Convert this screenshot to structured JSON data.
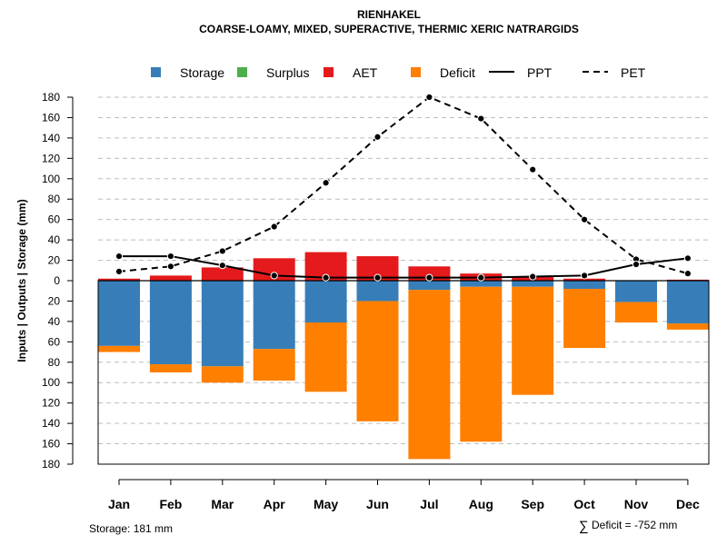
{
  "chart_data": {
    "type": "bar",
    "title": "RIENHAKEL",
    "subtitle": "COARSE-LOAMY, MIXED, SUPERACTIVE, THERMIC XERIC NATRARGIDS",
    "ylabel": "Inputs | Outputs | Storage    (mm)",
    "ylim": [
      -180,
      180
    ],
    "yticks": [
      180,
      160,
      140,
      120,
      100,
      80,
      60,
      40,
      20,
      0,
      -20,
      -40,
      -60,
      -80,
      -100,
      -120,
      -140,
      -160,
      -180
    ],
    "ytick_labels": [
      "180",
      "160",
      "140",
      "120",
      "100",
      "80",
      "60",
      "40",
      "20",
      "0",
      "20",
      "40",
      "60",
      "80",
      "100",
      "120",
      "140",
      "160",
      "180"
    ],
    "grid": true,
    "categories": [
      "Jan",
      "Feb",
      "Mar",
      "Apr",
      "May",
      "Jun",
      "Jul",
      "Aug",
      "Sep",
      "Oct",
      "Nov",
      "Dec"
    ],
    "legend": {
      "placement": "top",
      "items": [
        {
          "name": "Storage",
          "kind": "box",
          "color": "#377EB8"
        },
        {
          "name": "Surplus",
          "kind": "box",
          "color": "#4DAF4A"
        },
        {
          "name": "AET",
          "kind": "box",
          "color": "#E41A1C"
        },
        {
          "name": "Deficit",
          "kind": "box",
          "color": "#FF7F00"
        },
        {
          "name": "PPT",
          "kind": "solid-line",
          "color": "#000000"
        },
        {
          "name": "PET",
          "kind": "dashed-line",
          "color": "#000000"
        }
      ]
    },
    "series": [
      {
        "name": "AET",
        "kind": "bar-up",
        "color": "#E41A1C",
        "values": [
          2,
          5,
          13,
          22,
          28,
          24,
          14,
          7,
          4,
          2,
          0,
          1
        ]
      },
      {
        "name": "Storage",
        "kind": "bar-down",
        "color": "#377EB8",
        "values": [
          64,
          82,
          84,
          67,
          41,
          20,
          9,
          6,
          6,
          8,
          21,
          42
        ]
      },
      {
        "name": "Deficit",
        "kind": "bar-down-stacked",
        "color": "#FF7F00",
        "values": [
          6,
          8,
          16,
          31,
          68,
          118,
          166,
          152,
          106,
          58,
          20,
          6
        ]
      },
      {
        "name": "Surplus",
        "kind": "bar-up-stacked",
        "color": "#4DAF4A",
        "values": [
          0,
          0,
          0,
          0,
          0,
          0,
          0,
          0,
          0,
          0,
          0,
          0
        ]
      },
      {
        "name": "PPT",
        "kind": "line",
        "dash": false,
        "color": "#000000",
        "values": [
          24,
          24,
          15,
          5,
          3,
          3,
          3,
          3,
          4,
          5,
          16,
          22
        ]
      },
      {
        "name": "PET",
        "kind": "line",
        "dash": true,
        "color": "#000000",
        "values": [
          9,
          14,
          29,
          53,
          96,
          141,
          180,
          159,
          109,
          60,
          21,
          7
        ]
      }
    ]
  },
  "footer": {
    "storage": "Storage: 181 mm",
    "deficit_symbol": "∑",
    "deficit": "Deficit = -752 mm"
  }
}
